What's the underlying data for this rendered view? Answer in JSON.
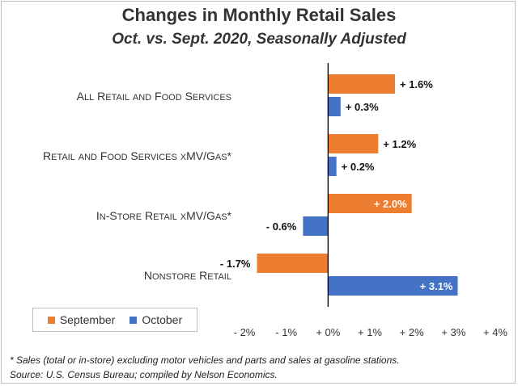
{
  "chart_data": {
    "type": "bar",
    "orientation": "horizontal",
    "title": "Changes in Monthly Retail Sales",
    "subtitle": "Oct. vs. Sept. 2020, Seasonally Adjusted",
    "categories": [
      "All Retail and Food Services",
      "Retail and Food Services xMV/Gas*",
      "In-Store Retail xMV/Gas*",
      "Nonstore Retail"
    ],
    "series": [
      {
        "name": "September",
        "color": "#ed7d31",
        "values": [
          1.6,
          1.2,
          2.0,
          -1.7
        ],
        "labels": [
          "+ 1.6%",
          "+ 1.2%",
          "+ 2.0%",
          "- 1.7%"
        ]
      },
      {
        "name": "October",
        "color": "#4472c4",
        "values": [
          0.3,
          0.2,
          -0.6,
          3.1
        ],
        "labels": [
          "+ 0.3%",
          "+ 0.2%",
          "- 0.6%",
          "+ 3.1%"
        ]
      }
    ],
    "xlim": [
      -2,
      4
    ],
    "xticks": [
      -2,
      -1,
      0,
      1,
      2,
      3,
      4
    ],
    "xtick_labels": [
      "- 2%",
      "- 1%",
      "+ 0%",
      "+ 1%",
      "+ 2%",
      "+ 3%",
      "+ 4%"
    ],
    "grid": false,
    "legend_position": "bottom-left"
  },
  "footnotes": [
    "* Sales (total or in-store) excluding motor vehicles and parts and sales at gasoline stations.",
    "Source: U.S. Census Bureau; compiled by Nelson Economics."
  ]
}
